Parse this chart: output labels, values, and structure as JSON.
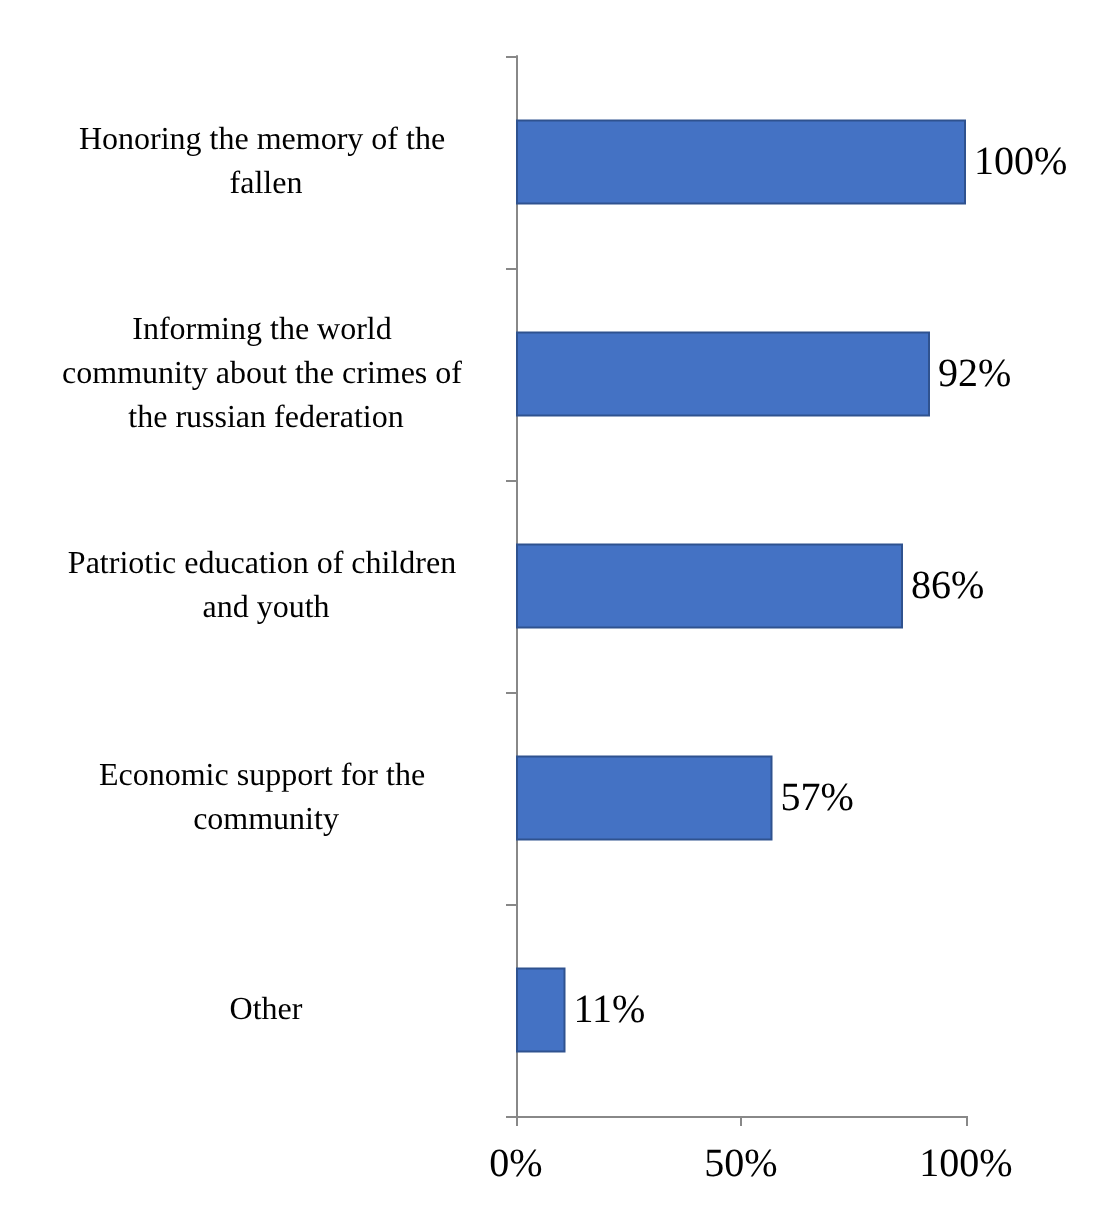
{
  "chart_data": {
    "type": "bar",
    "orientation": "horizontal",
    "categories": [
      "Honoring the memory of the fallen",
      "Informing the world community about the crimes of the russian federation",
      "Patriotic education of children and youth",
      "Economic support for the community",
      "Other"
    ],
    "values": [
      100,
      92,
      86,
      57,
      11
    ],
    "value_labels": [
      "100%",
      "92%",
      "86%",
      "57%",
      "11%"
    ],
    "color": "#4472c4",
    "xlim": [
      0,
      100
    ],
    "xticks": [
      {
        "value": 0,
        "label": "0%"
      },
      {
        "value": 50,
        "label": "50%"
      },
      {
        "value": 100,
        "label": "100%"
      }
    ],
    "grid": false
  }
}
